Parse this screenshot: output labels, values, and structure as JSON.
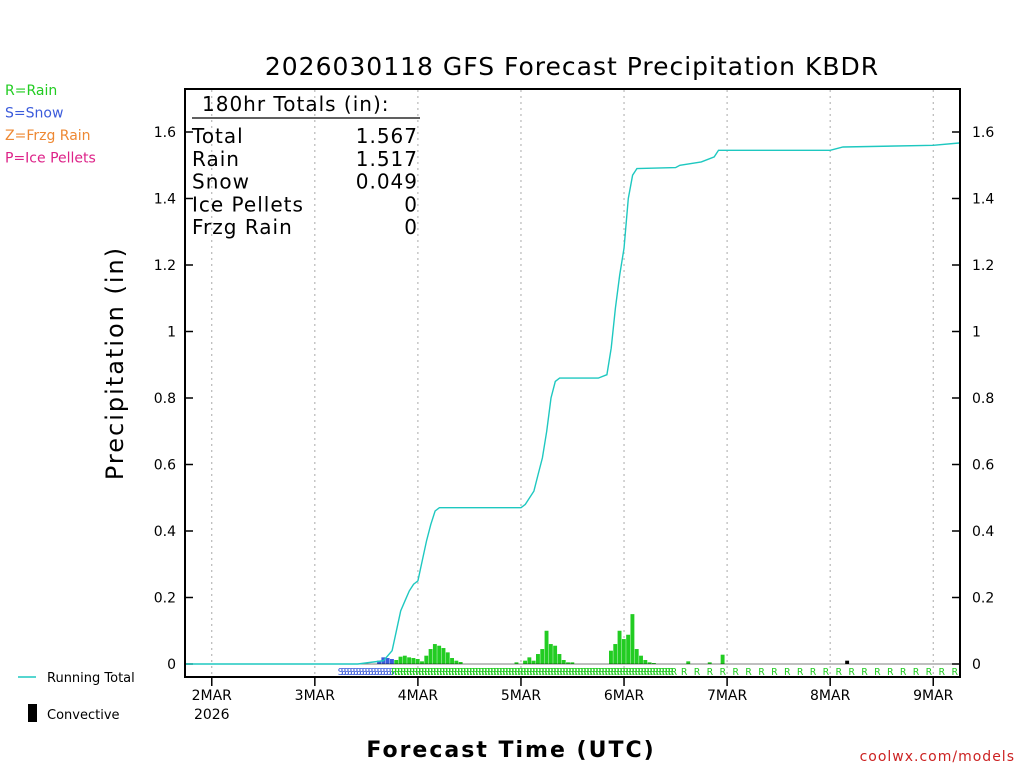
{
  "chart_data": {
    "type": "line",
    "title": "2026030118 GFS Forecast Precipitation KBDR",
    "xlabel": "Forecast Time (UTC)",
    "ylabel": "Precipitation (in)",
    "ylim": [
      0,
      1.72
    ],
    "xlim_hours": [
      -6,
      174
    ],
    "yticks": [
      0,
      0.2,
      0.4,
      0.6,
      0.8,
      1,
      1.2,
      1.4,
      1.6
    ],
    "ytick_labels": [
      "0",
      "0.2",
      "0.4",
      "0.6",
      "0.8",
      "1",
      "1.2",
      "1.4",
      "1.6"
    ],
    "x_day_ticks": [
      {
        "hour": 0,
        "label": "2MAR",
        "sub": "2026"
      },
      {
        "hour": 24,
        "label": "3MAR",
        "sub": ""
      },
      {
        "hour": 48,
        "label": "4MAR",
        "sub": ""
      },
      {
        "hour": 72,
        "label": "5MAR",
        "sub": ""
      },
      {
        "hour": 96,
        "label": "6MAR",
        "sub": ""
      },
      {
        "hour": 120,
        "label": "7MAR",
        "sub": ""
      },
      {
        "hour": 144,
        "label": "8MAR",
        "sub": ""
      },
      {
        "hour": 168,
        "label": "9MAR",
        "sub": ""
      }
    ],
    "totals": {
      "header": "180hr Totals (in):",
      "rows": [
        {
          "label": "Total",
          "value": "1.567"
        },
        {
          "label": "Rain",
          "value": "1.517"
        },
        {
          "label": "Snow",
          "value": "0.049"
        },
        {
          "label": "Ice Pellets",
          "value": "0"
        },
        {
          "label": "Frzg Rain",
          "value": "0"
        }
      ]
    },
    "legend": {
      "types": [
        {
          "text": "R=Rain",
          "color": "#22cc22"
        },
        {
          "text": "S=Snow",
          "color": "#3b5bdb"
        },
        {
          "text": "Z=Frzg Rain",
          "color": "#ee8833"
        },
        {
          "text": "P=Ice Pellets",
          "color": "#dd2288"
        }
      ],
      "running_total": "Running Total",
      "convective": "Convective"
    },
    "series": [
      {
        "name": "Running Total",
        "color": "#1ec8c0",
        "points": [
          [
            -6,
            0
          ],
          [
            34,
            0
          ],
          [
            40,
            0.01
          ],
          [
            42,
            0.04
          ],
          [
            43,
            0.1
          ],
          [
            44,
            0.16
          ],
          [
            45,
            0.19
          ],
          [
            46,
            0.22
          ],
          [
            47,
            0.24
          ],
          [
            48,
            0.25
          ],
          [
            49,
            0.31
          ],
          [
            50,
            0.37
          ],
          [
            51,
            0.42
          ],
          [
            52,
            0.46
          ],
          [
            53,
            0.47
          ],
          [
            54,
            0.47
          ],
          [
            70,
            0.47
          ],
          [
            72,
            0.47
          ],
          [
            73,
            0.48
          ],
          [
            74,
            0.5
          ],
          [
            75,
            0.52
          ],
          [
            76,
            0.57
          ],
          [
            77,
            0.62
          ],
          [
            78,
            0.7
          ],
          [
            79,
            0.8
          ],
          [
            80,
            0.85
          ],
          [
            81,
            0.86
          ],
          [
            83,
            0.86
          ],
          [
            84,
            0.86
          ],
          [
            90,
            0.86
          ],
          [
            92,
            0.87
          ],
          [
            93,
            0.95
          ],
          [
            94,
            1.07
          ],
          [
            95,
            1.17
          ],
          [
            96,
            1.25
          ],
          [
            97,
            1.4
          ],
          [
            98,
            1.47
          ],
          [
            99,
            1.49
          ],
          [
            108,
            1.493
          ],
          [
            109,
            1.5
          ],
          [
            114,
            1.51
          ],
          [
            117,
            1.525
          ],
          [
            118,
            1.545
          ],
          [
            144,
            1.545
          ],
          [
            147,
            1.555
          ],
          [
            168,
            1.56
          ],
          [
            174,
            1.567
          ]
        ]
      }
    ],
    "precip_bars": {
      "bar_hours": 1,
      "rain_color": "#22cc22",
      "snow_color": "#3b5bdb",
      "convective_color": "#000000",
      "rain": [
        [
          43,
          0.012
        ],
        [
          44,
          0.022
        ],
        [
          45,
          0.025
        ],
        [
          46,
          0.02
        ],
        [
          47,
          0.018
        ],
        [
          48,
          0.015
        ],
        [
          49,
          0.008
        ],
        [
          50,
          0.025
        ],
        [
          51,
          0.045
        ],
        [
          52,
          0.06
        ],
        [
          53,
          0.055
        ],
        [
          54,
          0.048
        ],
        [
          55,
          0.035
        ],
        [
          56,
          0.018
        ],
        [
          57,
          0.01
        ],
        [
          58,
          0.006
        ],
        [
          71,
          0.005
        ],
        [
          73,
          0.01
        ],
        [
          74,
          0.02
        ],
        [
          75,
          0.01
        ],
        [
          76,
          0.03
        ],
        [
          77,
          0.045
        ],
        [
          78,
          0.1
        ],
        [
          79,
          0.06
        ],
        [
          80,
          0.055
        ],
        [
          81,
          0.03
        ],
        [
          82,
          0.012
        ],
        [
          83,
          0.005
        ],
        [
          84,
          0.005
        ],
        [
          93,
          0.04
        ],
        [
          94,
          0.06
        ],
        [
          95,
          0.1
        ],
        [
          96,
          0.075
        ],
        [
          97,
          0.088
        ],
        [
          98,
          0.15
        ],
        [
          99,
          0.045
        ],
        [
          100,
          0.025
        ],
        [
          101,
          0.012
        ],
        [
          102,
          0.005
        ],
        [
          103,
          0.003
        ],
        [
          111,
          0.008
        ],
        [
          116,
          0.005
        ],
        [
          119,
          0.028
        ]
      ],
      "snow": [
        [
          39,
          0.01
        ],
        [
          40,
          0.02
        ],
        [
          41,
          0.018
        ],
        [
          42,
          0.015
        ]
      ],
      "convective": [
        [
          148,
          0.01
        ]
      ]
    },
    "ptype_marks": {
      "snow": {
        "letter": "S",
        "from": 30,
        "to": 42,
        "step": 0.7
      },
      "rain": {
        "letter": "R",
        "from": 42.5,
        "to": 108,
        "step": 0.7
      },
      "rain_sparse": {
        "letter": "R",
        "from": 110,
        "to": 174,
        "step": 3
      }
    }
  },
  "footer": {
    "credit": "coolwx.com/models"
  }
}
